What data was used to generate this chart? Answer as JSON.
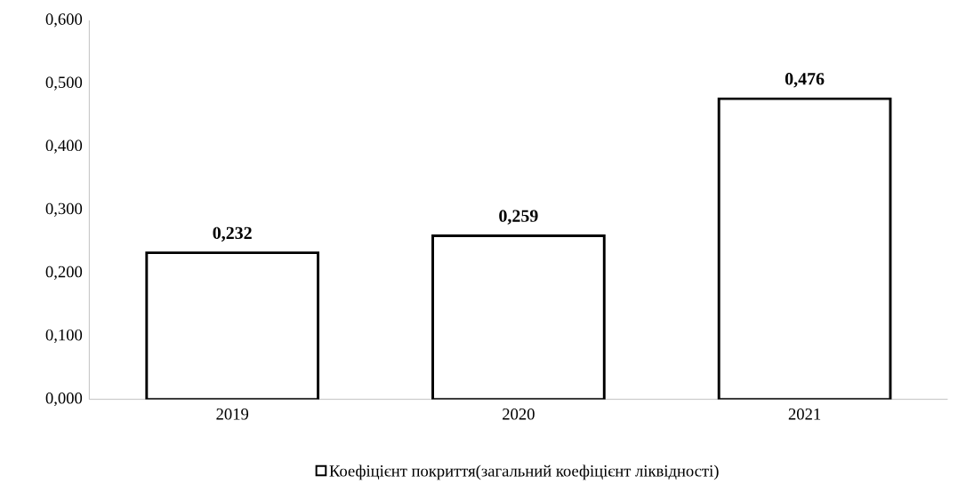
{
  "chart_data": {
    "type": "bar",
    "categories": [
      "2019",
      "2020",
      "2021"
    ],
    "series": [
      {
        "name": "Коефіцієнт покриття(загальний коефіцієнт ліквідності)",
        "color": "#ffffff",
        "values": [
          0.232,
          0.259,
          0.476
        ],
        "value_labels": [
          "0,232",
          "0,259",
          "0,476"
        ]
      }
    ],
    "ylim": [
      0,
      0.6
    ],
    "yticks": [
      {
        "value": 0,
        "label": "0,000"
      },
      {
        "value": 0.1,
        "label": "0,100"
      },
      {
        "value": 0.2,
        "label": "0,200"
      },
      {
        "value": 0.3,
        "label": "0,300"
      },
      {
        "value": 0.4,
        "label": "0,400"
      },
      {
        "value": 0.5,
        "label": "0,500"
      },
      {
        "value": 0.6,
        "label": "0,600"
      }
    ],
    "grid": false,
    "legend": "bottom"
  }
}
